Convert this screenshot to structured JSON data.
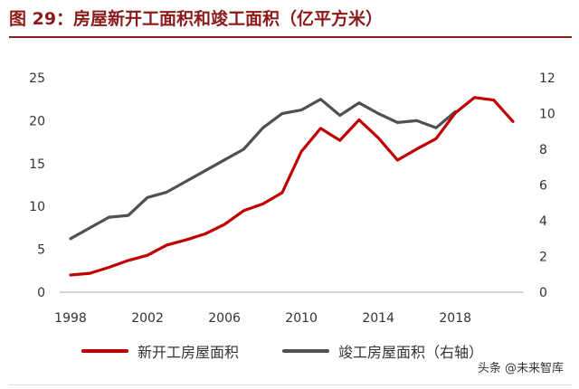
{
  "header": {
    "title": "图 29：房屋新开工面积和竣工面积（亿平方米）"
  },
  "chart_data": {
    "type": "line",
    "x": [
      1998,
      1999,
      2000,
      2001,
      2002,
      2003,
      2004,
      2005,
      2006,
      2007,
      2008,
      2009,
      2010,
      2011,
      2012,
      2013,
      2014,
      2015,
      2016,
      2017,
      2018,
      2019,
      2020,
      2021
    ],
    "x_ticks": [
      "1998",
      "2002",
      "2006",
      "2010",
      "2014",
      "2018"
    ],
    "series": [
      {
        "name": "新开工房屋面积",
        "axis": "left",
        "color": "#C00000",
        "values": [
          2.0,
          2.2,
          2.9,
          3.7,
          4.3,
          5.5,
          6.1,
          6.8,
          7.9,
          9.5,
          10.3,
          11.6,
          16.4,
          19.1,
          17.7,
          20.1,
          18.0,
          15.4,
          16.7,
          17.9,
          20.9,
          22.7,
          22.4,
          19.9
        ]
      },
      {
        "name": "竣工房屋面积（右轴）",
        "axis": "right",
        "color": "#505050",
        "values": [
          3.0,
          3.6,
          4.2,
          4.3,
          5.3,
          5.6,
          6.2,
          6.8,
          7.4,
          8.0,
          9.2,
          10.0,
          10.2,
          10.8,
          9.9,
          10.6,
          10.0,
          9.5,
          9.6,
          9.2,
          10.1,
          null,
          null,
          null
        ]
      }
    ],
    "y_left": {
      "range": [
        0,
        25
      ],
      "ticks": [
        "0",
        "5",
        "10",
        "15",
        "20",
        "25"
      ]
    },
    "y_right": {
      "range": [
        0,
        12
      ],
      "ticks": [
        "0",
        "2",
        "4",
        "6",
        "8",
        "10",
        "12"
      ]
    },
    "legend_position": "bottom",
    "grid": false
  },
  "watermark": "头条 @未来智库"
}
